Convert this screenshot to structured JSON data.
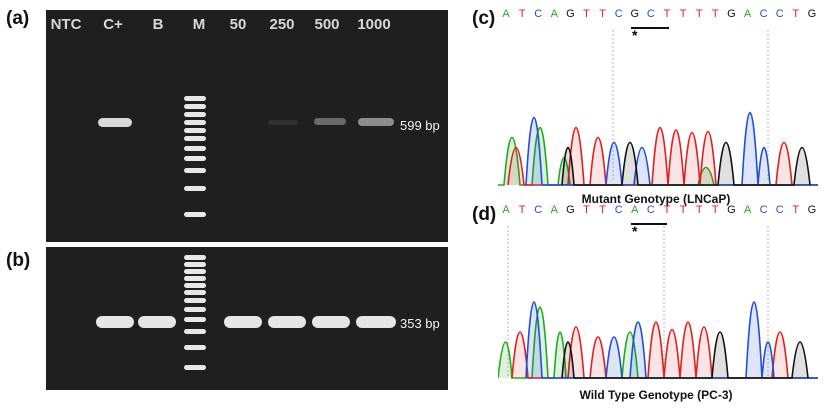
{
  "panels": {
    "a": "(a)",
    "b": "(b)",
    "c": "(c)",
    "d": "(d)"
  },
  "gel_a": {
    "lanes": [
      "NTC",
      "C+",
      "B",
      "M",
      "50",
      "250",
      "500",
      "1000"
    ],
    "band_size": "599 bp"
  },
  "gel_b": {
    "band_size": "353 bp"
  },
  "chromatogram_c": {
    "sequence": [
      "A",
      "T",
      "C",
      "A",
      "G",
      "T",
      "T",
      "C",
      "G",
      "C",
      "T",
      "T",
      "T",
      "T",
      "G",
      "A",
      "C",
      "C",
      "T",
      "G"
    ],
    "marker": "*",
    "caption": "Mutant Genotype (LNCaP)"
  },
  "chromatogram_d": {
    "sequence": [
      "A",
      "T",
      "C",
      "A",
      "G",
      "T",
      "T",
      "C",
      "A",
      "C",
      "T",
      "T",
      "T",
      "T",
      "G",
      "A",
      "C",
      "C",
      "T",
      "G"
    ],
    "marker": "*",
    "caption": "Wild Type Genotype (PC-3)"
  },
  "colors": {
    "A": "#22aa22",
    "T": "#e02020",
    "C": "#2050d8",
    "G": "#111111"
  }
}
